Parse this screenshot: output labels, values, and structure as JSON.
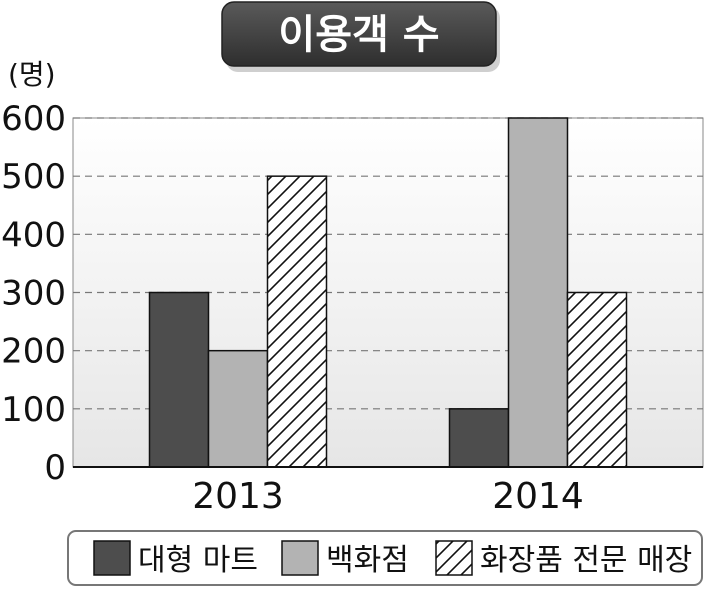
{
  "chart_data": {
    "type": "bar",
    "title": "이용객 수",
    "ylabel": "(명)",
    "categories": [
      "2013",
      "2014"
    ],
    "series": [
      {
        "name": "대형 마트",
        "values": [
          300,
          100
        ],
        "color": "#4d4d4d",
        "pattern": "solid"
      },
      {
        "name": "백화점",
        "values": [
          200,
          600
        ],
        "color": "#b3b3b3",
        "pattern": "solid"
      },
      {
        "name": "화장품 전문 매장",
        "values": [
          500,
          300
        ],
        "color": "#ffffff",
        "pattern": "hatch"
      }
    ],
    "yticks": [
      "0",
      "100",
      "200",
      "300",
      "400",
      "500",
      "600"
    ],
    "ylim": [
      0,
      600
    ],
    "grid": true,
    "legend_position": "bottom"
  }
}
